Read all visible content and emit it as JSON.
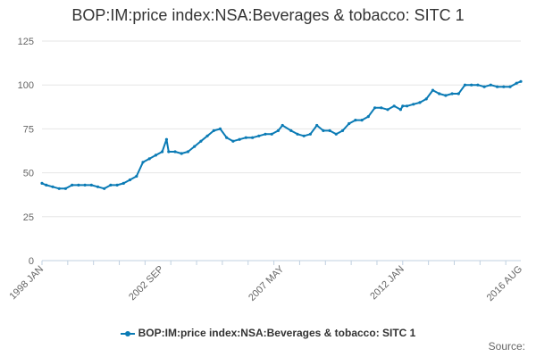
{
  "chart_data": {
    "type": "line",
    "title": "BOP:IM:price index:NSA:Beverages & tobacco: SITC 1",
    "xlabel": "",
    "ylabel": "",
    "ylim": [
      0,
      125
    ],
    "yticks": [
      0,
      25,
      50,
      75,
      100,
      125
    ],
    "xticks": [
      "1998 JAN",
      "2002 SEP",
      "2007 MAY",
      "2012 JAN",
      "2016 AUG"
    ],
    "grid": "horizontal",
    "legend_position": "bottom",
    "series": [
      {
        "name": "BOP:IM:price index:NSA:Beverages & tobacco: SITC 1",
        "color": "#0b7bb5",
        "x": [
          "1998 JAN",
          "1998 MAR",
          "1998 JUN",
          "1998 SEP",
          "1998 DEC",
          "1999 MAR",
          "1999 JUN",
          "1999 SEP",
          "1999 DEC",
          "2000 MAR",
          "2000 JUN",
          "2000 SEP",
          "2000 DEC",
          "2001 MAR",
          "2001 JUN",
          "2001 SEP",
          "2001 DEC",
          "2002 MAR",
          "2002 JUN",
          "2002 SEP",
          "2002 NOV",
          "2002 DEC",
          "2003 MAR",
          "2003 JUN",
          "2003 SEP",
          "2003 DEC",
          "2004 MAR",
          "2004 JUN",
          "2004 SEP",
          "2004 DEC",
          "2005 MAR",
          "2005 JUN",
          "2005 SEP",
          "2005 DEC",
          "2006 MAR",
          "2006 JUN",
          "2006 SEP",
          "2006 DEC",
          "2007 MAR",
          "2007 MAY",
          "2007 SEP",
          "2007 DEC",
          "2008 MAR",
          "2008 JUN",
          "2008 SEP",
          "2008 DEC",
          "2009 MAR",
          "2009 JUN",
          "2009 SEP",
          "2009 DEC",
          "2010 MAR",
          "2010 JUN",
          "2010 SEP",
          "2010 DEC",
          "2011 MAR",
          "2011 JUN",
          "2011 SEP",
          "2011 DEC",
          "2012 JAN",
          "2012 MAR",
          "2012 JUN",
          "2012 SEP",
          "2012 DEC",
          "2013 MAR",
          "2013 JUN",
          "2013 SEP",
          "2013 DEC",
          "2014 MAR",
          "2014 JUN",
          "2014 SEP",
          "2014 DEC",
          "2015 MAR",
          "2015 JUN",
          "2015 SEP",
          "2015 DEC",
          "2016 MAR",
          "2016 JUN",
          "2016 AUG"
        ],
        "values": [
          44,
          43,
          42,
          41,
          41,
          43,
          43,
          43,
          43,
          42,
          41,
          43,
          43,
          44,
          46,
          48,
          56,
          58,
          60,
          62,
          69,
          62,
          62,
          61,
          62,
          65,
          68,
          71,
          74,
          75,
          70,
          68,
          69,
          70,
          70,
          71,
          72,
          72,
          74,
          77,
          74,
          72,
          71,
          72,
          77,
          74,
          74,
          72,
          74,
          78,
          80,
          80,
          82,
          87,
          87,
          86,
          88,
          86,
          88,
          88,
          89,
          90,
          92,
          97,
          95,
          94,
          95,
          95,
          100,
          100,
          100,
          99,
          100,
          99,
          99,
          99,
          101,
          102
        ]
      }
    ]
  },
  "source_label": "Source:"
}
